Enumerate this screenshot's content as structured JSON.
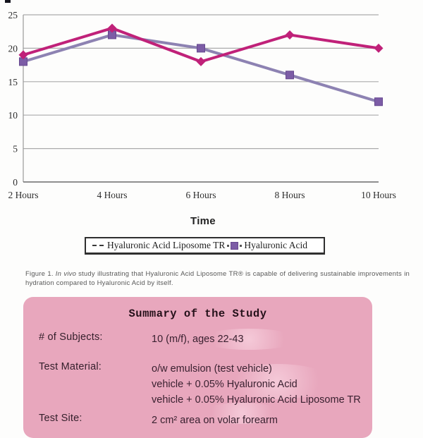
{
  "chart_data": {
    "type": "line",
    "categories": [
      "2 Hours",
      "4 Hours",
      "6 Hours",
      "8 Hours",
      "10 Hours"
    ],
    "series": [
      {
        "name": "Hyaluronic Acid Liposome TR",
        "values": [
          19,
          23,
          18,
          22,
          20
        ],
        "line_color": "#c02179",
        "marker_color": "#c02179",
        "marker": "diamond"
      },
      {
        "name": "Hyaluronic Acid",
        "values": [
          18,
          22,
          20,
          16,
          12
        ],
        "line_color": "#8d82b2",
        "marker_color": "#7c5ca6",
        "marker": "square"
      }
    ],
    "title": "",
    "xlabel": "Time",
    "ylabel": "",
    "ylim": [
      0,
      25
    ],
    "yticks": [
      0,
      5,
      10,
      15,
      20,
      25
    ],
    "grid": "horizontal",
    "legend_position": "bottom"
  },
  "figure_caption": {
    "prefix": "Figure 1.",
    "italic": "In vivo",
    "rest": "study illustrating that Hyaluronic Acid Liposome TR® is capable of delivering sustainable improvements in hydration compared to Hyaluronic Acid by itself."
  },
  "summary": {
    "title": "Summary of the Study",
    "box_color": "#e8a7bd",
    "rows": [
      {
        "label": "# of Subjects:",
        "values": [
          "10 (m/f), ages 22-43"
        ]
      },
      {
        "label": "Test Material:",
        "values": [
          "o/w emulsion (test vehicle)",
          "vehicle +  0.05% Hyaluronic Acid",
          "vehicle +  0.05% Hyaluronic Acid Liposome TR"
        ]
      },
      {
        "label": "Test Site:",
        "values": [
          "2 cm² area on volar forearm"
        ]
      }
    ]
  },
  "colors": {
    "accent_pink": "#c02179",
    "accent_purple": "#7c5ca6",
    "summary_box_pink": "#e8a7bd",
    "gridline": "#ababab"
  }
}
